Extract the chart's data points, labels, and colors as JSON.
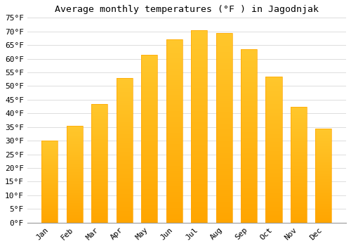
{
  "title": "Average monthly temperatures (°F ) in Jagodnjak",
  "months": [
    "Jan",
    "Feb",
    "Mar",
    "Apr",
    "May",
    "Jun",
    "Jul",
    "Aug",
    "Sep",
    "Oct",
    "Nov",
    "Dec"
  ],
  "values": [
    30,
    35.5,
    43.5,
    53,
    61.5,
    67,
    70.5,
    69.5,
    63.5,
    53.5,
    42.5,
    34.5
  ],
  "bar_color_top": "#FFC72C",
  "bar_color_bottom": "#FFA500",
  "background_color": "#FFFFFF",
  "grid_color": "#DDDDDD",
  "ylim": [
    0,
    75
  ],
  "yticks": [
    0,
    5,
    10,
    15,
    20,
    25,
    30,
    35,
    40,
    45,
    50,
    55,
    60,
    65,
    70,
    75
  ],
  "title_fontsize": 9.5,
  "tick_fontsize": 8,
  "font_family": "monospace",
  "bar_width": 0.65
}
